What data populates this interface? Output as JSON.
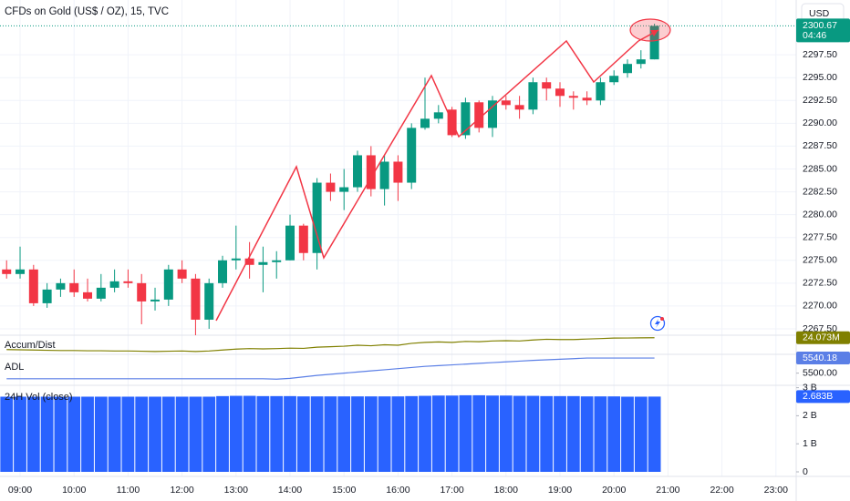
{
  "chart_data": [
    {
      "type": "candlestick",
      "title": "CFDs on Gold (US$ / OZ), 15, TVC",
      "x": [
        8.75,
        9,
        9.25,
        9.5,
        9.75,
        10,
        10.25,
        10.5,
        10.75,
        11,
        11.25,
        11.5,
        11.75,
        12,
        12.25,
        12.5,
        12.75,
        13,
        13.25,
        13.5,
        13.75,
        14,
        14.25,
        14.5,
        14.75,
        15,
        15.25,
        15.5,
        15.75,
        16,
        16.25,
        16.5,
        16.75,
        17,
        17.25,
        17.5,
        17.75,
        18,
        18.25,
        18.5,
        18.75,
        19,
        19.25,
        19.5,
        19.75,
        20,
        20.25,
        20.5,
        20.75
      ],
      "open": [
        2274,
        2273.5,
        2274,
        2270.3,
        2271.8,
        2272.5,
        2271.5,
        2270.8,
        2272,
        2272.7,
        2272.5,
        2270.5,
        2270.7,
        2274,
        2273,
        2268.5,
        2272.5,
        2275,
        2275.2,
        2274.5,
        2274.8,
        2275,
        2278.8,
        2275.8,
        2283.5,
        2282.5,
        2283,
        2286.5,
        2282.8,
        2285.8,
        2283.5,
        2289.5,
        2290.5,
        2291.5,
        2288.7,
        2292.3,
        2289.5,
        2292.5,
        2292,
        2291.5,
        2294.5,
        2293.8,
        2293,
        2292.8,
        2292.5,
        2294.5,
        2295.5,
        2296.5,
        2297
      ],
      "high": [
        2275,
        2276.5,
        2274.5,
        2272.5,
        2273,
        2274,
        2273,
        2273.5,
        2274,
        2274,
        2273.5,
        2272,
        2274.5,
        2275,
        2273.5,
        2273,
        2275.5,
        2278.8,
        2277,
        2276.5,
        2276,
        2280,
        2279,
        2284,
        2284.5,
        2285,
        2287,
        2287.5,
        2286.5,
        2286.5,
        2290,
        2295,
        2292,
        2291.8,
        2292.8,
        2292.5,
        2293,
        2293,
        2293,
        2295,
        2295,
        2294.5,
        2293.5,
        2293.5,
        2295,
        2295.8,
        2297,
        2298,
        2300.9
      ],
      "low": [
        2273,
        2273,
        2270,
        2269.8,
        2271,
        2271,
        2270.5,
        2270.5,
        2271.5,
        2272,
        2268,
        2269.5,
        2270,
        2272.5,
        2266.8,
        2267.5,
        2272,
        2274,
        2273,
        2271.5,
        2273,
        2275,
        2275,
        2274,
        2281.5,
        2280.5,
        2282.5,
        2282,
        2281,
        2281.5,
        2282.8,
        2289.3,
        2290,
        2288.5,
        2288.3,
        2289,
        2288.5,
        2291.5,
        2290.5,
        2291,
        2292.5,
        2291.8,
        2291.5,
        2292,
        2292,
        2294.2,
        2295,
        2296,
        2297
      ],
      "close": [
        2273.5,
        2274,
        2270.3,
        2271.8,
        2272.5,
        2271.5,
        2270.8,
        2272,
        2272.7,
        2272.5,
        2270.5,
        2270.7,
        2274,
        2273,
        2268.5,
        2272.5,
        2275,
        2275.2,
        2274.5,
        2274.8,
        2275,
        2278.8,
        2275.8,
        2283.5,
        2282.5,
        2283,
        2286.5,
        2282.8,
        2285.8,
        2283.5,
        2289.5,
        2290.5,
        2291.2,
        2288.7,
        2292.3,
        2289.5,
        2292.5,
        2292,
        2291.5,
        2294.5,
        2293.8,
        2293,
        2292.8,
        2292.5,
        2294.5,
        2295.2,
        2296.5,
        2297,
        2300.67
      ],
      "up_color": "#089981",
      "down_color": "#f23645",
      "xlim": [
        8.628,
        23.375
      ],
      "xticks": [
        {
          "value": 9,
          "label": "09:00"
        },
        {
          "value": 10,
          "label": "10:00"
        },
        {
          "value": 11,
          "label": "11:00"
        },
        {
          "value": 12,
          "label": "12:00"
        },
        {
          "value": 13,
          "label": "13:00"
        },
        {
          "value": 14,
          "label": "14:00"
        },
        {
          "value": 15,
          "label": "15:00"
        },
        {
          "value": 16,
          "label": "16:00"
        },
        {
          "value": 17,
          "label": "17:00"
        },
        {
          "value": 18,
          "label": "18:00"
        },
        {
          "value": 19,
          "label": "19:00"
        },
        {
          "value": 20,
          "label": "20:00"
        },
        {
          "value": 21,
          "label": "21:00"
        },
        {
          "value": 22,
          "label": "22:00"
        },
        {
          "value": 23,
          "label": "23:00"
        }
      ],
      "ylim": [
        2266.8,
        2303.5
      ],
      "yticks": [
        {
          "value": 2267.5,
          "label": "2267.50"
        },
        {
          "value": 2270,
          "label": "2270.00"
        },
        {
          "value": 2272.5,
          "label": "2272.50"
        },
        {
          "value": 2275,
          "label": "2275.00"
        },
        {
          "value": 2277.5,
          "label": "2277.50"
        },
        {
          "value": 2280,
          "label": "2280.00"
        },
        {
          "value": 2282.5,
          "label": "2282.50"
        },
        {
          "value": 2285,
          "label": "2285.00"
        },
        {
          "value": 2287.5,
          "label": "2287.50"
        },
        {
          "value": 2290,
          "label": "2290.00"
        },
        {
          "value": 2292.5,
          "label": "2292.50"
        },
        {
          "value": 2295,
          "label": "2295.00"
        },
        {
          "value": 2297.5,
          "label": "2297.50"
        }
      ],
      "grid": true,
      "countdown": "04:46",
      "currency": "USD"
    },
    {
      "type": "line",
      "title": "Accum/Dist",
      "color": "#808000",
      "values": [
        21.6,
        21.55,
        21.5,
        21.45,
        21.4,
        21.4,
        21.35,
        21.35,
        21.3,
        21.3,
        21.25,
        21.2,
        21.25,
        21.3,
        21.2,
        21.3,
        21.5,
        21.7,
        21.8,
        21.75,
        21.8,
        21.9,
        21.85,
        22.1,
        22.2,
        22.3,
        22.5,
        22.4,
        22.6,
        22.5,
        22.9,
        23.1,
        23.2,
        23.1,
        23.3,
        23.25,
        23.4,
        23.45,
        23.4,
        23.6,
        23.75,
        23.7,
        23.7,
        23.8,
        23.9,
        24.0,
        24.02,
        24.05,
        24.073
      ],
      "last_label": "24.073M",
      "ylim": [
        20.6,
        24.6
      ]
    },
    {
      "type": "line",
      "title": "ADL",
      "color": "#5b7fe6",
      "values": [
        5485,
        5485,
        5485,
        5485,
        5485,
        5485,
        5485,
        5485,
        5485,
        5485,
        5485,
        5485,
        5485,
        5485,
        5485,
        5485,
        5485,
        5485,
        5485,
        5485,
        5484,
        5486,
        5490,
        5494,
        5497,
        5500,
        5503,
        5506,
        5509,
        5512,
        5515,
        5518,
        5520,
        5522,
        5524,
        5526,
        5528,
        5530,
        5532,
        5534,
        5535.5,
        5537,
        5538.5,
        5540.18,
        5540.18,
        5540.18,
        5540.18,
        5540.18,
        5540.18
      ],
      "ylim": [
        5470,
        5550
      ],
      "yticks": [
        {
          "value": 5500,
          "label": "5500.00"
        }
      ]
    },
    {
      "type": "bar",
      "title": "24H Vol (close)",
      "color": "#2962ff",
      "values": [
        2.68,
        2.68,
        2.68,
        2.68,
        2.68,
        2.68,
        2.68,
        2.68,
        2.68,
        2.68,
        2.68,
        2.68,
        2.68,
        2.68,
        2.68,
        2.68,
        2.7,
        2.71,
        2.71,
        2.7,
        2.7,
        2.7,
        2.69,
        2.69,
        2.69,
        2.69,
        2.69,
        2.69,
        2.69,
        2.69,
        2.7,
        2.71,
        2.72,
        2.72,
        2.73,
        2.73,
        2.72,
        2.72,
        2.71,
        2.71,
        2.7,
        2.7,
        2.7,
        2.69,
        2.69,
        2.69,
        2.68,
        2.68,
        2.683
      ],
      "last_label": "2.683B",
      "ylim": [
        0,
        3.02
      ],
      "yticks": [
        0,
        {
          "value": 1,
          "label": "1 B"
        },
        {
          "value": 2,
          "label": "2 B"
        },
        {
          "value": 3,
          "label": "3 B"
        }
      ]
    }
  ]
}
